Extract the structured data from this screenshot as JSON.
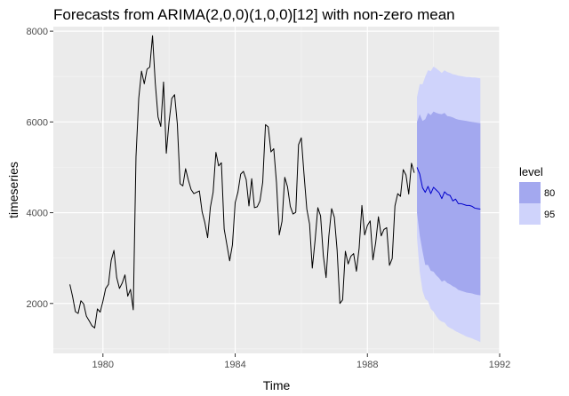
{
  "chart_data": {
    "type": "line",
    "title": "Forecasts from ARIMA(2,0,0)(1,0,0)[12] with non-zero mean",
    "xlabel": "Time",
    "ylabel": "timeseries",
    "xlim": [
      1978.5,
      1992
    ],
    "ylim": [
      900,
      8100
    ],
    "x_ticks": [
      1980,
      1984,
      1988,
      1992
    ],
    "y_ticks": [
      2000,
      4000,
      6000,
      8000
    ],
    "x_tick_labels": [
      "1980",
      "1984",
      "1988",
      "1992"
    ],
    "y_tick_labels": [
      "2000",
      "4000",
      "6000",
      "8000"
    ],
    "grid": true,
    "legend": {
      "title": "level",
      "placement": "right",
      "items": [
        {
          "label": "80",
          "color": "#a3a8ef"
        },
        {
          "label": "95",
          "color": "#cfd3fb"
        }
      ]
    },
    "colors": {
      "panel": "#ebebeb",
      "grid_major": "#ffffff",
      "grid_minor": "#f4f4f4",
      "observed_line": "#000000",
      "forecast_line": "#0000cc",
      "band_80": "#a3a8ef",
      "band_95": "#cfd3fb"
    },
    "observed": {
      "x": [
        1979.0,
        1979.083,
        1979.167,
        1979.25,
        1979.333,
        1979.417,
        1979.5,
        1979.583,
        1979.667,
        1979.75,
        1979.833,
        1979.917,
        1980.0,
        1980.083,
        1980.167,
        1980.25,
        1980.333,
        1980.417,
        1980.5,
        1980.583,
        1980.667,
        1980.75,
        1980.833,
        1980.917,
        1981.0,
        1981.083,
        1981.167,
        1981.25,
        1981.333,
        1981.417,
        1981.5,
        1981.583,
        1981.667,
        1981.75,
        1981.833,
        1981.917,
        1982.0,
        1982.083,
        1982.167,
        1982.25,
        1982.333,
        1982.417,
        1982.5,
        1982.583,
        1982.667,
        1982.75,
        1982.833,
        1982.917,
        1983.0,
        1983.083,
        1983.167,
        1983.25,
        1983.333,
        1983.417,
        1983.5,
        1983.583,
        1983.667,
        1983.75,
        1983.833,
        1983.917,
        1984.0,
        1984.083,
        1984.167,
        1984.25,
        1984.333,
        1984.417,
        1984.5,
        1984.583,
        1984.667,
        1984.75,
        1984.833,
        1984.917,
        1985.0,
        1985.083,
        1985.167,
        1985.25,
        1985.333,
        1985.417,
        1985.5,
        1985.583,
        1985.667,
        1985.75,
        1985.833,
        1985.917,
        1986.0,
        1986.083,
        1986.167,
        1986.25,
        1986.333,
        1986.417,
        1986.5,
        1986.583,
        1986.667,
        1986.75,
        1986.833,
        1986.917,
        1987.0,
        1987.083,
        1987.167,
        1987.25,
        1987.333,
        1987.417,
        1987.5,
        1987.583,
        1987.667,
        1987.75,
        1987.833,
        1987.917,
        1988.0,
        1988.083,
        1988.167,
        1988.25,
        1988.333,
        1988.417,
        1988.5,
        1988.583,
        1988.667,
        1988.75,
        1988.833,
        1988.917,
        1989.0,
        1989.083,
        1989.167,
        1989.25,
        1989.333,
        1989.417
      ],
      "y": [
        2420,
        2150,
        1820,
        1780,
        2060,
        1990,
        1720,
        1620,
        1510,
        1460,
        1880,
        1810,
        2050,
        2330,
        2420,
        2950,
        3170,
        2570,
        2330,
        2450,
        2630,
        2160,
        2310,
        1860,
        5230,
        6520,
        7120,
        6840,
        7160,
        7210,
        7900,
        6860,
        6110,
        5900,
        6880,
        5310,
        6000,
        6520,
        6600,
        5960,
        4640,
        4590,
        4970,
        4720,
        4510,
        4420,
        4450,
        4480,
        4020,
        3780,
        3450,
        4120,
        4450,
        5330,
        5030,
        5100,
        3640,
        3290,
        2940,
        3290,
        4220,
        4450,
        4850,
        4910,
        4730,
        4150,
        4750,
        4110,
        4130,
        4260,
        4670,
        5940,
        5890,
        5340,
        5410,
        4660,
        3510,
        3810,
        4780,
        4570,
        4140,
        3970,
        4010,
        5500,
        5650,
        4840,
        4080,
        3750,
        2780,
        3390,
        4110,
        3930,
        3050,
        2570,
        3480,
        4090,
        3900,
        3180,
        2000,
        2080,
        3150,
        2870,
        3040,
        3100,
        2710,
        3220,
        4160,
        3510,
        3720,
        3820,
        2960,
        3340,
        3910,
        3490,
        3630,
        3670,
        2840,
        2990,
        4150,
        4420,
        4360,
        4950,
        4830,
        4410,
        5090,
        4880
      ]
    },
    "forecast": {
      "x": [
        1989.5,
        1989.583,
        1989.667,
        1989.75,
        1989.833,
        1989.917,
        1990.0,
        1990.083,
        1990.167,
        1990.25,
        1990.333,
        1990.417,
        1990.5,
        1990.583,
        1990.667,
        1990.75,
        1990.833,
        1990.917,
        1991.0,
        1991.083,
        1991.167,
        1991.25,
        1991.333,
        1991.417
      ],
      "mean": [
        5000,
        4850,
        4550,
        4450,
        4580,
        4420,
        4560,
        4500,
        4440,
        4310,
        4460,
        4400,
        4380,
        4260,
        4300,
        4200,
        4200,
        4180,
        4160,
        4160,
        4140,
        4100,
        4090,
        4080
      ],
      "lo80": [
        4000,
        3500,
        3150,
        2850,
        2850,
        2720,
        2700,
        2620,
        2560,
        2480,
        2510,
        2450,
        2420,
        2380,
        2350,
        2300,
        2280,
        2260,
        2240,
        2230,
        2220,
        2200,
        2190,
        2180
      ],
      "hi80": [
        6000,
        6170,
        6020,
        6060,
        6200,
        6150,
        6230,
        6200,
        6180,
        6170,
        6200,
        6130,
        6120,
        6100,
        6070,
        6050,
        6040,
        6030,
        6020,
        6010,
        6000,
        5990,
        5980,
        5970
      ],
      "lo95": [
        3450,
        2700,
        2280,
        2100,
        2050,
        1880,
        1820,
        1720,
        1640,
        1600,
        1580,
        1500,
        1460,
        1430,
        1390,
        1360,
        1330,
        1300,
        1270,
        1250,
        1230,
        1200,
        1180,
        1150
      ],
      "hi95": [
        6550,
        6830,
        6830,
        7000,
        7140,
        7120,
        7220,
        7180,
        7130,
        7080,
        7140,
        7100,
        7080,
        7050,
        7040,
        7020,
        7010,
        7000,
        6990,
        6990,
        6980,
        6980,
        6970,
        6960
      ]
    }
  }
}
